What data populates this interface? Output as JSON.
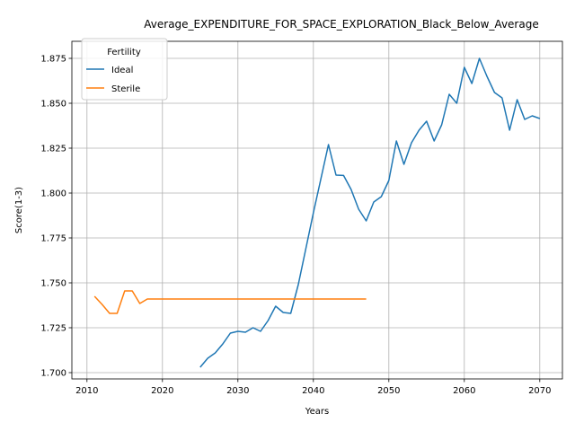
{
  "chart_data": {
    "type": "line",
    "title": "Average_EXPENDITURE_FOR_SPACE_EXPLORATION_Black_Below_Average",
    "xlabel": "Years",
    "ylabel": "Score(1-3)",
    "xlim": [
      2008,
      2073
    ],
    "ylim": [
      1.6965,
      1.8845
    ],
    "xticks": [
      2010,
      2020,
      2030,
      2040,
      2050,
      2060,
      2070
    ],
    "yticks": [
      1.7,
      1.725,
      1.75,
      1.775,
      1.8,
      1.825,
      1.85,
      1.875
    ],
    "ytick_labels": [
      "1.700",
      "1.725",
      "1.750",
      "1.775",
      "1.800",
      "1.825",
      "1.850",
      "1.875"
    ],
    "grid": true,
    "legend": {
      "title": "Fertility",
      "placement": "top-left"
    },
    "series": [
      {
        "name": "Ideal",
        "color": "#1f77b4",
        "x": [
          2025,
          2026,
          2027,
          2028,
          2029,
          2030,
          2031,
          2032,
          2033,
          2034,
          2035,
          2036,
          2037,
          2038,
          2039,
          2040,
          2041,
          2042,
          2043,
          2044,
          2045,
          2046,
          2047,
          2048,
          2049,
          2050,
          2051,
          2052,
          2053,
          2054,
          2055,
          2056,
          2057,
          2058,
          2059,
          2060,
          2061,
          2062,
          2063,
          2064,
          2065,
          2066,
          2067,
          2068,
          2069,
          2070
        ],
        "y": [
          1.703,
          1.708,
          1.711,
          1.716,
          1.722,
          1.723,
          1.7225,
          1.725,
          1.723,
          1.729,
          1.737,
          1.7335,
          1.733,
          1.749,
          1.769,
          1.789,
          1.808,
          1.827,
          1.81,
          1.8098,
          1.802,
          1.791,
          1.7845,
          1.795,
          1.798,
          1.807,
          1.829,
          1.816,
          1.828,
          1.835,
          1.84,
          1.829,
          1.838,
          1.855,
          1.85,
          1.87,
          1.861,
          1.875,
          1.865,
          1.856,
          1.853,
          1.835,
          1.852,
          1.841,
          1.843,
          1.8415
        ]
      },
      {
        "name": "Sterile",
        "color": "#ff7f0e",
        "x": [
          2011,
          2012,
          2013,
          2014,
          2015,
          2016,
          2017,
          2018,
          2019,
          2020,
          2021,
          2022,
          2023,
          2024,
          2025,
          2026,
          2027,
          2028,
          2029,
          2030,
          2031,
          2032,
          2033,
          2034,
          2035,
          2036,
          2037,
          2038,
          2039,
          2040,
          2041,
          2042,
          2043,
          2044,
          2045,
          2046,
          2047
        ],
        "y": [
          1.7425,
          1.738,
          1.733,
          1.733,
          1.7455,
          1.7455,
          1.7385,
          1.741,
          1.741,
          1.741,
          1.741,
          1.741,
          1.741,
          1.741,
          1.741,
          1.741,
          1.741,
          1.741,
          1.741,
          1.741,
          1.741,
          1.741,
          1.741,
          1.741,
          1.741,
          1.741,
          1.741,
          1.741,
          1.741,
          1.741,
          1.741,
          1.741,
          1.741,
          1.741,
          1.741,
          1.741,
          1.741
        ]
      }
    ]
  }
}
